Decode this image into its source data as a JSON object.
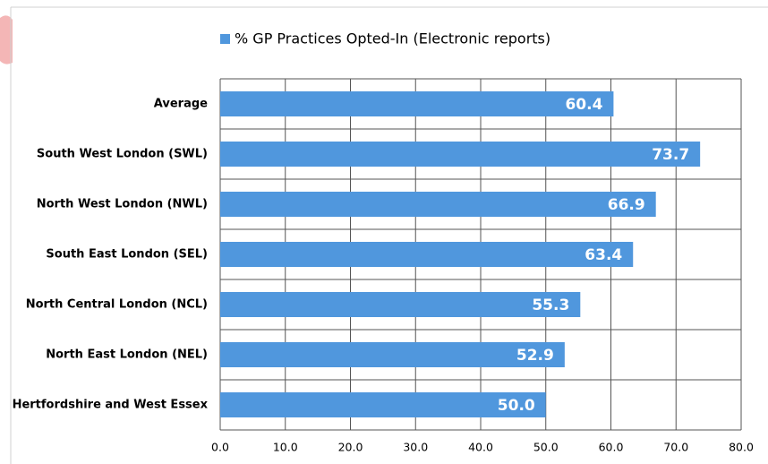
{
  "chart_data": {
    "type": "bar",
    "orientation": "horizontal",
    "legend": "% GP Practices Opted-In (Electronic reports)",
    "color": "#5097dd",
    "categories": [
      "Average",
      "South West London (SWL)",
      "North West London (NWL)",
      "South East London (SEL)",
      "North Central London (NCL)",
      "North East London (NEL)",
      "Hertfordshire and West Essex"
    ],
    "values": [
      60.4,
      73.7,
      66.9,
      63.4,
      55.3,
      52.9,
      50.0
    ],
    "value_labels": [
      "60.4",
      "73.7",
      "66.9",
      "63.4",
      "55.3",
      "52.9",
      "50.0"
    ],
    "xlim": [
      0,
      80
    ],
    "xticks": [
      {
        "value": 0,
        "label": "0.0"
      },
      {
        "value": 10,
        "label": "10.0"
      },
      {
        "value": 20,
        "label": "20.0"
      },
      {
        "value": 30,
        "label": "30.0"
      },
      {
        "value": 40,
        "label": "40.0"
      },
      {
        "value": 50,
        "label": "50.0"
      },
      {
        "value": 60,
        "label": "60.0"
      },
      {
        "value": 70,
        "label": "70.0"
      },
      {
        "value": 80,
        "label": "80.0"
      }
    ],
    "grid": true
  }
}
